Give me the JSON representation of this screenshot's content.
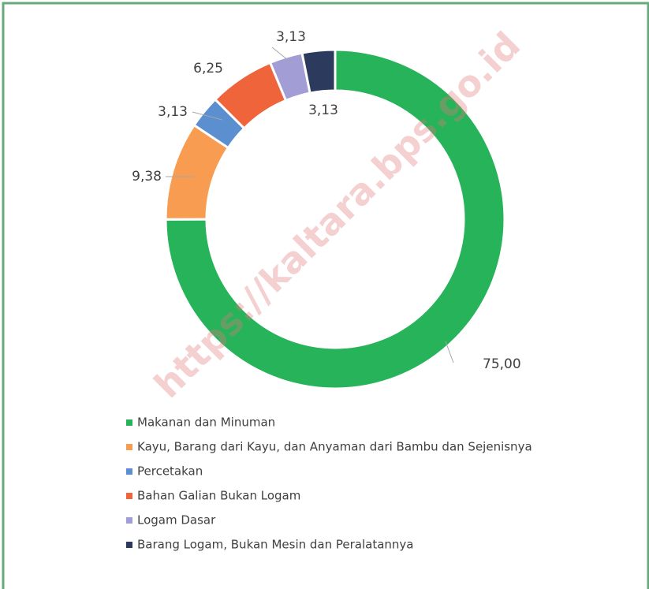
{
  "chart_data": {
    "type": "donut",
    "categories": [
      "Makanan dan Minuman",
      "Kayu, Barang dari Kayu, dan Anyaman dari Bambu dan Sejenisnya",
      "Percetakan",
      "Bahan Galian Bukan Logam",
      "Logam Dasar",
      "Barang Logam, Bukan Mesin dan Peralatannya"
    ],
    "values": [
      75.0,
      9.38,
      3.13,
      6.25,
      3.13,
      3.13
    ],
    "value_labels": [
      "75,00",
      "9,38",
      "3,13",
      "6,25",
      "3,13",
      "3,13"
    ],
    "colors": [
      "#27b35a",
      "#f89c52",
      "#5b8fd0",
      "#f0643b",
      "#a29dd5",
      "#2b3a5d"
    ],
    "legend": "bottom",
    "watermark": "https://kaltara.bps.go.id"
  }
}
